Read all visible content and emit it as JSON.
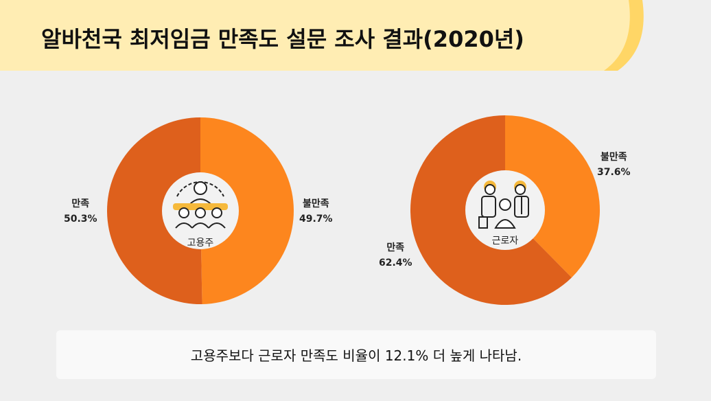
{
  "title": "알바천국 최저임금 만족도 설문 조사 결과(2020년)",
  "colors": {
    "header": "#ffedb3",
    "header_accent": "#ffd666",
    "satisfied": "#de601c",
    "unsatisfied": "#fd861e",
    "center": "#f2f2f2",
    "icon_accent": "#f6b93b"
  },
  "chart_data": [
    {
      "type": "pie",
      "variant": "donut",
      "center_label": "고용주",
      "center_icon": "employer-group-icon",
      "slices": [
        {
          "label": "불만족",
          "value": 49.7,
          "display": "49.7%"
        },
        {
          "label": "만족",
          "value": 50.3,
          "display": "50.3%"
        }
      ]
    },
    {
      "type": "pie",
      "variant": "donut",
      "center_label": "근로자",
      "center_icon": "workers-group-icon",
      "slices": [
        {
          "label": "불만족",
          "value": 37.6,
          "display": "37.6%"
        },
        {
          "label": "만족",
          "value": 62.4,
          "display": "62.4%"
        }
      ]
    }
  ],
  "summary": "고용주보다 근로자 만족도 비율이 12.1% 더 높게 나타남."
}
